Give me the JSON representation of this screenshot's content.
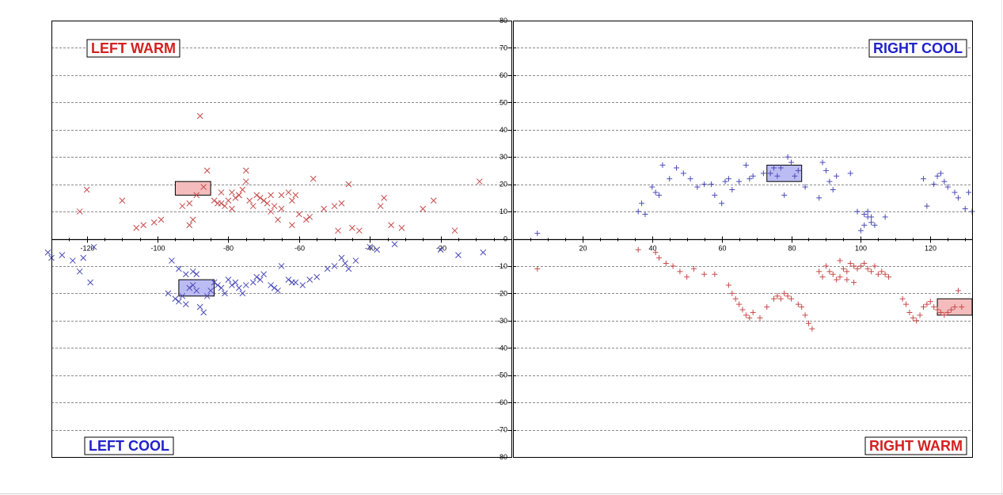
{
  "chart_data": {
    "type": "scatter",
    "title": "",
    "xlabel": "",
    "ylabel": "",
    "grid": true,
    "legend": "none",
    "panels": [
      {
        "name": "left",
        "xlim": [
          -130,
          0
        ],
        "ylim": [
          -80,
          80
        ],
        "x_ticks": [
          -120,
          -100,
          -80,
          -60,
          -40,
          -20
        ]
      },
      {
        "name": "right",
        "xlim": [
          0,
          132
        ],
        "ylim": [
          -80,
          80
        ],
        "x_ticks": [
          20,
          40,
          60,
          80,
          100,
          120
        ]
      }
    ],
    "y_ticks": [
      80,
      70,
      60,
      50,
      40,
      30,
      20,
      10,
      0,
      -10,
      -20,
      -30,
      -40,
      -50,
      -60,
      -70,
      -80
    ],
    "quadrant_labels": {
      "left_warm": "LEFT WARM",
      "right_cool": "RIGHT COOL",
      "left_cool": "LEFT COOL",
      "right_warm": "RIGHT WARM"
    },
    "colors": {
      "warm": "#d42020",
      "cool": "#2222cc",
      "warm_marker": "#c84a4a",
      "cool_marker": "#4a4ab8",
      "warm_box": "#f4bcbc",
      "cool_box": "#bcbcf4"
    },
    "boxes": [
      {
        "panel": "left",
        "x": [
          -95,
          -85
        ],
        "y": [
          16,
          21
        ],
        "color": "warm"
      },
      {
        "panel": "left",
        "x": [
          -94,
          -84
        ],
        "y": [
          -21,
          -15
        ],
        "color": "cool"
      },
      {
        "panel": "right",
        "x": [
          73,
          83
        ],
        "y": [
          21,
          27
        ],
        "color": "cool"
      },
      {
        "panel": "right",
        "x": [
          122,
          132
        ],
        "y": [
          -28,
          -22
        ],
        "color": "warm"
      }
    ],
    "series": [
      {
        "name": "",
        "panel": "left",
        "color": "warm",
        "marker": "x",
        "points": [
          [
            -88,
            45
          ],
          [
            -86,
            25
          ],
          [
            -75,
            25
          ],
          [
            -120,
            18
          ],
          [
            -110,
            14
          ],
          [
            -122,
            10
          ],
          [
            -106,
            4
          ],
          [
            -104,
            5
          ],
          [
            -101,
            6
          ],
          [
            -99,
            7
          ],
          [
            -91,
            5
          ],
          [
            -90,
            7
          ],
          [
            -93,
            12
          ],
          [
            -91,
            13
          ],
          [
            -89,
            16
          ],
          [
            -87,
            19
          ],
          [
            -84,
            14
          ],
          [
            -83,
            13
          ],
          [
            -82,
            17
          ],
          [
            -81,
            12
          ],
          [
            -80,
            14
          ],
          [
            -79,
            11
          ],
          [
            -78,
            15
          ],
          [
            -77,
            16
          ],
          [
            -76,
            18
          ],
          [
            -75,
            21
          ],
          [
            -73,
            12
          ],
          [
            -72,
            16
          ],
          [
            -71,
            15
          ],
          [
            -70,
            14
          ],
          [
            -69,
            13
          ],
          [
            -68,
            10
          ],
          [
            -67,
            12
          ],
          [
            -66,
            7
          ],
          [
            -65,
            11
          ],
          [
            -63,
            17
          ],
          [
            -62,
            14
          ],
          [
            -61,
            16
          ],
          [
            -60,
            9
          ],
          [
            -58,
            7
          ],
          [
            -57,
            8
          ],
          [
            -56,
            22
          ],
          [
            -53,
            11
          ],
          [
            -50,
            12
          ],
          [
            -48,
            13
          ],
          [
            -46,
            20
          ],
          [
            -45,
            4
          ],
          [
            -43,
            3
          ],
          [
            -37,
            12
          ],
          [
            -36,
            15
          ],
          [
            -34,
            5
          ],
          [
            -31,
            4
          ],
          [
            -25,
            11
          ],
          [
            -22,
            14
          ],
          [
            -16,
            3
          ],
          [
            -9,
            21
          ],
          [
            -49,
            3
          ],
          [
            -62,
            5
          ],
          [
            -68,
            16
          ],
          [
            -82,
            13
          ],
          [
            -79,
            17
          ],
          [
            -77,
            16
          ],
          [
            -74,
            14
          ],
          [
            -65,
            16
          ]
        ]
      },
      {
        "name": "",
        "panel": "left",
        "color": "cool",
        "marker": "x",
        "points": [
          [
            -131,
            -5
          ],
          [
            -130,
            -7
          ],
          [
            -127,
            -6
          ],
          [
            -124,
            -8
          ],
          [
            -121,
            -7
          ],
          [
            -122,
            -12
          ],
          [
            -119,
            -16
          ],
          [
            -118,
            -3
          ],
          [
            -97,
            -20
          ],
          [
            -95,
            -22
          ],
          [
            -94,
            -23
          ],
          [
            -93,
            -21
          ],
          [
            -92,
            -24
          ],
          [
            -91,
            -18
          ],
          [
            -90,
            -17
          ],
          [
            -89,
            -19
          ],
          [
            -88,
            -25
          ],
          [
            -87,
            -27
          ],
          [
            -86,
            -21
          ],
          [
            -85,
            -19
          ],
          [
            -84,
            -16
          ],
          [
            -83,
            -17
          ],
          [
            -82,
            -18
          ],
          [
            -81,
            -20
          ],
          [
            -80,
            -15
          ],
          [
            -79,
            -17
          ],
          [
            -78,
            -16
          ],
          [
            -77,
            -18
          ],
          [
            -76,
            -20
          ],
          [
            -75,
            -17
          ],
          [
            -73,
            -16
          ],
          [
            -72,
            -14
          ],
          [
            -71,
            -15
          ],
          [
            -70,
            -13
          ],
          [
            -68,
            -17
          ],
          [
            -67,
            -18
          ],
          [
            -66,
            -19
          ],
          [
            -65,
            -10
          ],
          [
            -63,
            -15
          ],
          [
            -62,
            -16
          ],
          [
            -61,
            -16
          ],
          [
            -59,
            -17
          ],
          [
            -57,
            -15
          ],
          [
            -55,
            -14
          ],
          [
            -52,
            -11
          ],
          [
            -50,
            -10
          ],
          [
            -48,
            -7
          ],
          [
            -47,
            -9
          ],
          [
            -46,
            -11
          ],
          [
            -44,
            -8
          ],
          [
            -40,
            -3
          ],
          [
            -38,
            -4
          ],
          [
            -33,
            -2
          ],
          [
            -20,
            -4
          ],
          [
            -15,
            -6
          ],
          [
            -8,
            -5
          ],
          [
            -96,
            -8
          ],
          [
            -94,
            -11
          ],
          [
            -92,
            -13
          ],
          [
            -90,
            -12
          ],
          [
            -89,
            -13
          ]
        ]
      },
      {
        "name": "",
        "panel": "right",
        "color": "cool",
        "marker": "plus",
        "points": [
          [
            7,
            2
          ],
          [
            36,
            10
          ],
          [
            37,
            13
          ],
          [
            38,
            9
          ],
          [
            40,
            19
          ],
          [
            41,
            17
          ],
          [
            42,
            16
          ],
          [
            43,
            27
          ],
          [
            45,
            22
          ],
          [
            47,
            26
          ],
          [
            49,
            24
          ],
          [
            51,
            22
          ],
          [
            53,
            19
          ],
          [
            55,
            20
          ],
          [
            57,
            20
          ],
          [
            58,
            16
          ],
          [
            60,
            13
          ],
          [
            61,
            21
          ],
          [
            62,
            22
          ],
          [
            63,
            18
          ],
          [
            65,
            21
          ],
          [
            67,
            27
          ],
          [
            68,
            22
          ],
          [
            69,
            23
          ],
          [
            72,
            24
          ],
          [
            74,
            24
          ],
          [
            76,
            23
          ],
          [
            77,
            26
          ],
          [
            79,
            30
          ],
          [
            80,
            28
          ],
          [
            81,
            23
          ],
          [
            82,
            25
          ],
          [
            84,
            19
          ],
          [
            88,
            15
          ],
          [
            89,
            28
          ],
          [
            90,
            25
          ],
          [
            91,
            21
          ],
          [
            92,
            18
          ],
          [
            93,
            23
          ],
          [
            97,
            24
          ],
          [
            99,
            10
          ],
          [
            100,
            3
          ],
          [
            101,
            5
          ],
          [
            101,
            9
          ],
          [
            102,
            10
          ],
          [
            102,
            8
          ],
          [
            103,
            8
          ],
          [
            103,
            6
          ],
          [
            104,
            5
          ],
          [
            107,
            8
          ],
          [
            118,
            22
          ],
          [
            119,
            12
          ],
          [
            121,
            20
          ],
          [
            122,
            23
          ],
          [
            123,
            24
          ],
          [
            124,
            21
          ],
          [
            125,
            19
          ],
          [
            127,
            17
          ],
          [
            128,
            15
          ],
          [
            130,
            11
          ],
          [
            131,
            17
          ],
          [
            132,
            10
          ],
          [
            75,
            26
          ],
          [
            78,
            16
          ]
        ]
      },
      {
        "name": "",
        "panel": "right",
        "color": "warm",
        "marker": "plus",
        "points": [
          [
            7,
            -11
          ],
          [
            36,
            -4
          ],
          [
            41,
            -5
          ],
          [
            42,
            -7
          ],
          [
            44,
            -9
          ],
          [
            46,
            -10
          ],
          [
            48,
            -12
          ],
          [
            50,
            -14
          ],
          [
            52,
            -11
          ],
          [
            55,
            -13
          ],
          [
            58,
            -13
          ],
          [
            62,
            -17
          ],
          [
            63,
            -20
          ],
          [
            64,
            -22
          ],
          [
            65,
            -24
          ],
          [
            66,
            -26
          ],
          [
            67,
            -28
          ],
          [
            68,
            -29
          ],
          [
            69,
            -27
          ],
          [
            71,
            -29
          ],
          [
            73,
            -25
          ],
          [
            75,
            -22
          ],
          [
            76,
            -21
          ],
          [
            77,
            -22
          ],
          [
            78,
            -20
          ],
          [
            79,
            -21
          ],
          [
            80,
            -22
          ],
          [
            82,
            -24
          ],
          [
            83,
            -25
          ],
          [
            84,
            -28
          ],
          [
            85,
            -31
          ],
          [
            86,
            -33
          ],
          [
            88,
            -12
          ],
          [
            89,
            -14
          ],
          [
            90,
            -10
          ],
          [
            91,
            -12
          ],
          [
            92,
            -13
          ],
          [
            93,
            -15
          ],
          [
            94,
            -14
          ],
          [
            95,
            -11
          ],
          [
            96,
            -12
          ],
          [
            97,
            -9
          ],
          [
            98,
            -10
          ],
          [
            99,
            -11
          ],
          [
            100,
            -10
          ],
          [
            101,
            -9
          ],
          [
            102,
            -11
          ],
          [
            103,
            -12
          ],
          [
            104,
            -10
          ],
          [
            105,
            -13
          ],
          [
            106,
            -12
          ],
          [
            107,
            -13
          ],
          [
            108,
            -14
          ],
          [
            112,
            -22
          ],
          [
            113,
            -24
          ],
          [
            114,
            -27
          ],
          [
            115,
            -29
          ],
          [
            116,
            -30
          ],
          [
            117,
            -28
          ],
          [
            118,
            -25
          ],
          [
            119,
            -24
          ],
          [
            120,
            -23
          ],
          [
            121,
            -25
          ],
          [
            122,
            -26
          ],
          [
            123,
            -27
          ],
          [
            124,
            -28
          ],
          [
            125,
            -27
          ],
          [
            126,
            -26
          ],
          [
            127,
            -25
          ],
          [
            128,
            -19
          ],
          [
            129,
            -25
          ],
          [
            94,
            -8
          ],
          [
            96,
            -15
          ],
          [
            98,
            -16
          ]
        ]
      }
    ]
  }
}
